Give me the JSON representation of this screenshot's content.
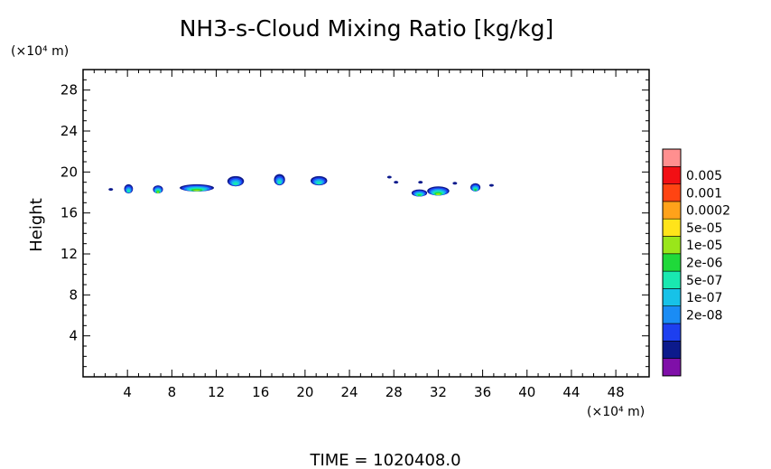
{
  "chart_data": {
    "type": "heatmap",
    "title": "NH3-s-Cloud Mixing Ratio [kg/kg]",
    "ylabel": "Height",
    "y_unit": "(×10⁴ m)",
    "x_unit": "(×10⁴ m)",
    "time_label": "TIME  =  1020408.0",
    "xlim": [
      0,
      51
    ],
    "ylim": [
      0,
      30
    ],
    "xticks": [
      4,
      8,
      12,
      16,
      20,
      24,
      28,
      32,
      36,
      40,
      44,
      48
    ],
    "yticks": [
      4,
      8,
      12,
      16,
      20,
      24,
      28
    ],
    "colorbar": {
      "labels": [
        "0.005",
        "0.001",
        "0.0002",
        "5e-05",
        "1e-05",
        "2e-06",
        "5e-07",
        "1e-07",
        "2e-08"
      ],
      "colors": [
        "#7f0fa8",
        "#0c1a8c",
        "#1d3ff0",
        "#1a8cf5",
        "#17c2e8",
        "#19e8b0",
        "#1fd93a",
        "#9ae61a",
        "#ffe41a",
        "#ffa21a",
        "#ff4412",
        "#f20f14",
        "#ff8f8f"
      ]
    },
    "features": [
      {
        "x": [
          3.7,
          4.5
        ],
        "y": [
          17.9,
          18.8
        ],
        "level": 5
      },
      {
        "x": [
          6.3,
          7.2
        ],
        "y": [
          17.9,
          18.7
        ],
        "level": 7
      },
      {
        "x": [
          8.7,
          11.8
        ],
        "y": [
          18.1,
          18.8
        ],
        "level": 7
      },
      {
        "x": [
          13.0,
          14.5
        ],
        "y": [
          18.6,
          19.6
        ],
        "level": 5
      },
      {
        "x": [
          17.2,
          18.2
        ],
        "y": [
          18.7,
          19.8
        ],
        "level": 5
      },
      {
        "x": [
          20.5,
          22.0
        ],
        "y": [
          18.7,
          19.6
        ],
        "level": 5
      },
      {
        "x": [
          29.6,
          31.0
        ],
        "y": [
          17.6,
          18.3
        ],
        "level": 6
      },
      {
        "x": [
          31.0,
          33.0
        ],
        "y": [
          17.7,
          18.6
        ],
        "level": 7
      },
      {
        "x": [
          34.9,
          35.8
        ],
        "y": [
          18.1,
          18.9
        ],
        "level": 6
      }
    ]
  }
}
